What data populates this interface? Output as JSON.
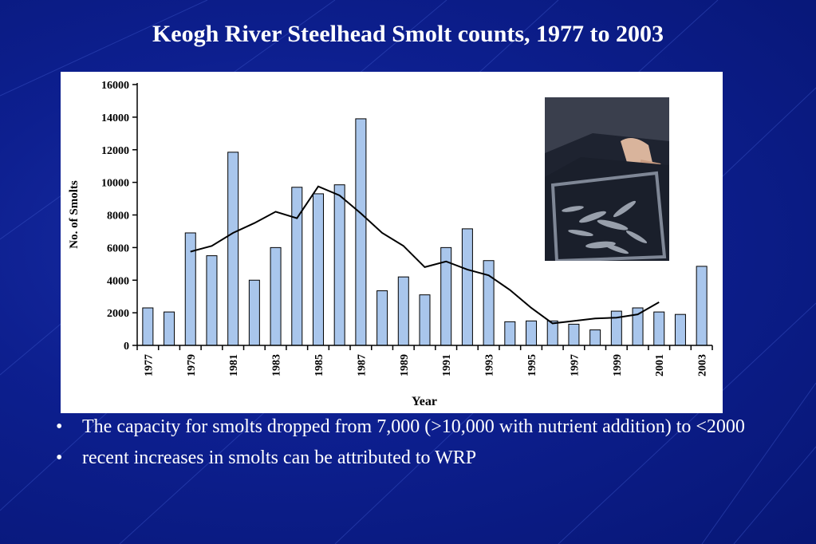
{
  "slide": {
    "title": "Keogh River Steelhead Smolt counts, 1977 to 2003",
    "bullets": [
      "The capacity for smolts dropped from 7,000 (>10,000 with nutrient addition) to <2000",
      "recent increases in smolts can be attributed to WRP"
    ],
    "bullet_symbol": "•"
  },
  "photo": {
    "icon": "fish-net-photo"
  },
  "colors": {
    "background": "#0d1f8f",
    "bar_fill": "#a9c6ec",
    "bar_stroke": "#000000",
    "line": "#000000"
  },
  "chart_data": {
    "type": "bar",
    "title": "",
    "xlabel": "Year",
    "ylabel": "No. of Smolts",
    "ylim": [
      0,
      16000
    ],
    "yticks": [
      0,
      2000,
      4000,
      6000,
      8000,
      10000,
      12000,
      14000,
      16000
    ],
    "xtick_labels": [
      "1977",
      "1979",
      "1981",
      "1983",
      "1985",
      "1987",
      "1989",
      "1991",
      "1993",
      "1995",
      "1997",
      "1999",
      "2001",
      "2003"
    ],
    "categories": [
      "1977",
      "1978",
      "1979",
      "1980",
      "1981",
      "1982",
      "1983",
      "1984",
      "1985",
      "1986",
      "1987",
      "1988",
      "1989",
      "1990",
      "1991",
      "1992",
      "1993",
      "1994",
      "1995",
      "1996",
      "1997",
      "1998",
      "1999",
      "2000",
      "2001",
      "2002",
      "2003"
    ],
    "series": [
      {
        "type": "bar",
        "values": [
          2300,
          2050,
          6900,
          5500,
          11850,
          4000,
          6000,
          9700,
          9300,
          9850,
          13900,
          3350,
          4200,
          3100,
          6000,
          7150,
          5200,
          1450,
          1500,
          1500,
          1300,
          950,
          2100,
          2300,
          2050,
          1900,
          4850
        ]
      },
      {
        "type": "line",
        "x": [
          "1979",
          "1980",
          "1981",
          "1982",
          "1983",
          "1984",
          "1985",
          "1986",
          "1987",
          "1988",
          "1989",
          "1990",
          "1991",
          "1992",
          "1993",
          "1994",
          "1995",
          "1996",
          "1997",
          "1998",
          "1999",
          "2000",
          "2001"
        ],
        "values": [
          5750,
          6100,
          6900,
          7500,
          8200,
          7800,
          9750,
          9200,
          8100,
          6900,
          6100,
          4800,
          5150,
          4650,
          4300,
          3400,
          2300,
          1350,
          1500,
          1650,
          1700,
          1900,
          2650
        ]
      }
    ],
    "grid": false,
    "legend": "none"
  }
}
